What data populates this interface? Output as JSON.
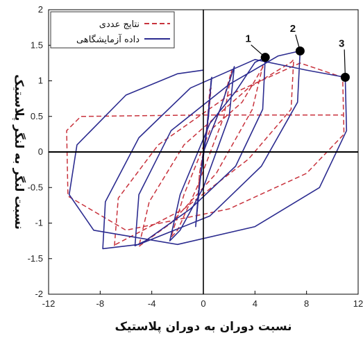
{
  "chart_data": {
    "type": "line",
    "xlabel": "نسبت دوران به دوران پلاستیک",
    "ylabel": "نسبت لنگر به لنگر پلاستیک",
    "xlim": [
      -12,
      12
    ],
    "ylim": [
      -2,
      2
    ],
    "x_ticks": [
      "-12",
      "-8",
      "-4",
      "0",
      "4",
      "8",
      "12"
    ],
    "y_ticks": [
      "2",
      "1.5",
      "1",
      "0.5",
      "0",
      "-0.5",
      "-1",
      "-1.5",
      "-2"
    ],
    "x_tick_values": [
      -12,
      -8,
      -4,
      0,
      4,
      8,
      12
    ],
    "y_tick_values": [
      2,
      1.5,
      1,
      0.5,
      0,
      -0.5,
      -1,
      -1.5,
      -2
    ],
    "grid": false,
    "legend_position": "top-left",
    "colors": {
      "numerical": "#c8323c",
      "experimental": "#2b2b8f",
      "axes": "#000000",
      "zero_line": "#000000"
    },
    "series": [
      {
        "name": "نتایج عددی",
        "style": "dashed",
        "points": [
          [
            0,
            0
          ],
          [
            0.3,
            0.4
          ],
          [
            0.5,
            0.88
          ],
          [
            0.6,
            0.9
          ],
          [
            0.3,
            0.3
          ],
          [
            -0.3,
            -0.3
          ],
          [
            -0.5,
            -0.9
          ],
          [
            -0.3,
            -0.3
          ],
          [
            0,
            0
          ],
          [
            1.5,
            0.7
          ],
          [
            2.2,
            1.15
          ],
          [
            1.6,
            0.5
          ],
          [
            -0.5,
            -0.5
          ],
          [
            -2,
            -1.1
          ],
          [
            -2.5,
            -1.2
          ],
          [
            -1.5,
            -0.6
          ],
          [
            0.5,
            0.3
          ],
          [
            3,
            0.7
          ],
          [
            4.8,
            1.25
          ],
          [
            4.7,
            1.28
          ],
          [
            3.8,
            0.6
          ],
          [
            1,
            -0.3
          ],
          [
            -2.5,
            -1.0
          ],
          [
            -4.8,
            -1.3
          ],
          [
            -5,
            -1.33
          ],
          [
            -4.2,
            -0.7
          ],
          [
            -1.5,
            0.1
          ],
          [
            3.5,
            0.9
          ],
          [
            6.8,
            1.26
          ],
          [
            7,
            1.3
          ],
          [
            6.8,
            0.6
          ],
          [
            3.5,
            -0.1
          ],
          [
            -1.5,
            -0.8
          ],
          [
            -6.8,
            -1.3
          ],
          [
            -6.9,
            -1.33
          ],
          [
            -6.6,
            -0.65
          ],
          [
            -3.5,
            0.1
          ],
          [
            2,
            0.8
          ],
          [
            7.5,
            1.25
          ],
          [
            10.8,
            1.05
          ],
          [
            10.9,
            0.25
          ],
          [
            8,
            -0.3
          ],
          [
            2,
            -0.8
          ],
          [
            -6,
            -1.1
          ],
          [
            -10.5,
            -0.62
          ],
          [
            -10.6,
            0.3
          ],
          [
            -9.5,
            0.5
          ],
          [
            0,
            0.52
          ],
          [
            10.9,
            0.52
          ]
        ]
      },
      {
        "name": "داده آزمایشگاهی",
        "style": "solid",
        "points": [
          [
            0,
            0
          ],
          [
            0.4,
            0.5
          ],
          [
            0.6,
            1.0
          ],
          [
            0.65,
            1.05
          ],
          [
            0.2,
            0.2
          ],
          [
            -0.4,
            -0.6
          ],
          [
            -0.6,
            -1.05
          ],
          [
            -0.2,
            -0.3
          ],
          [
            0,
            0
          ],
          [
            1.3,
            0.6
          ],
          [
            2.4,
            1.2
          ],
          [
            2.0,
            0.5
          ],
          [
            0,
            -0.5
          ],
          [
            -1.8,
            -1.1
          ],
          [
            -2.6,
            -1.25
          ],
          [
            -1.8,
            -0.6
          ],
          [
            0.5,
            0.4
          ],
          [
            2.5,
            0.85
          ],
          [
            4.0,
            1.26
          ],
          [
            4.8,
            1.33
          ],
          [
            4.6,
            0.6
          ],
          [
            2.5,
            -0.2
          ],
          [
            -1,
            -0.8
          ],
          [
            -4.5,
            -1.25
          ],
          [
            -5.3,
            -1.32
          ],
          [
            -5.0,
            -0.6
          ],
          [
            -2.5,
            0.3
          ],
          [
            2,
            0.95
          ],
          [
            5.8,
            1.35
          ],
          [
            7.5,
            1.42
          ],
          [
            7.3,
            0.7
          ],
          [
            4.5,
            -0.2
          ],
          [
            0.5,
            -0.9
          ],
          [
            -5,
            -1.3
          ],
          [
            -7.8,
            -1.36
          ],
          [
            -7.6,
            -0.7
          ],
          [
            -5,
            0.2
          ],
          [
            -1,
            0.9
          ],
          [
            4,
            1.3
          ],
          [
            8,
            1.15
          ],
          [
            11.0,
            1.05
          ],
          [
            11.1,
            0.3
          ],
          [
            9,
            -0.5
          ],
          [
            4,
            -1.05
          ],
          [
            -2,
            -1.3
          ],
          [
            -8.5,
            -1.1
          ],
          [
            -10.4,
            -0.6
          ],
          [
            -9.8,
            0.1
          ],
          [
            -6,
            0.8
          ],
          [
            -2,
            1.1
          ],
          [
            0,
            1.15
          ]
        ]
      }
    ],
    "legend": [
      {
        "label": "نتایج عددی",
        "style": "dashed"
      },
      {
        "label": "داده آزمایشگاهی",
        "style": "solid"
      }
    ],
    "annotations": [
      {
        "label": "1",
        "x": 4.8,
        "y": 1.33
      },
      {
        "label": "2",
        "x": 7.5,
        "y": 1.42
      },
      {
        "label": "3",
        "x": 11.0,
        "y": 1.05
      }
    ]
  }
}
